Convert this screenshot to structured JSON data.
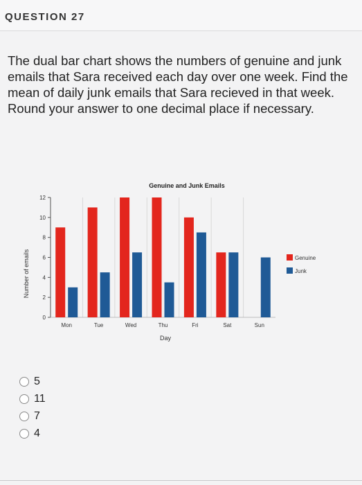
{
  "header": {
    "title": "QUESTION 27"
  },
  "question": {
    "text": "The dual bar chart shows the numbers of genuine and junk emails that Sara received each day over one week. Find the mean of daily junk emails that Sara recieved in that week. Round your answer to one decimal place if necessary."
  },
  "options": [
    {
      "label": "5"
    },
    {
      "label": "11"
    },
    {
      "label": "7"
    },
    {
      "label": "4"
    }
  ],
  "chart_data": {
    "type": "bar",
    "title": "Genuine and Junk Emails",
    "xlabel": "Day",
    "ylabel": "Number of emails",
    "categories": [
      "Mon",
      "Tue",
      "Wed",
      "Thu",
      "Fri",
      "Sat",
      "Sun"
    ],
    "series": [
      {
        "name": "Genuine",
        "color": "#e3261d",
        "values": [
          9,
          11,
          12,
          12,
          10,
          6.5,
          0
        ]
      },
      {
        "name": "Junk",
        "color": "#1f5a96",
        "values": [
          3,
          4.5,
          6.5,
          3.5,
          8.5,
          6.5,
          6
        ]
      }
    ],
    "ylim": [
      0,
      12
    ],
    "yticks": [
      "0",
      "2",
      "4",
      "6",
      "8",
      "10",
      "12"
    ],
    "grid": "vertical",
    "legend": "right"
  }
}
